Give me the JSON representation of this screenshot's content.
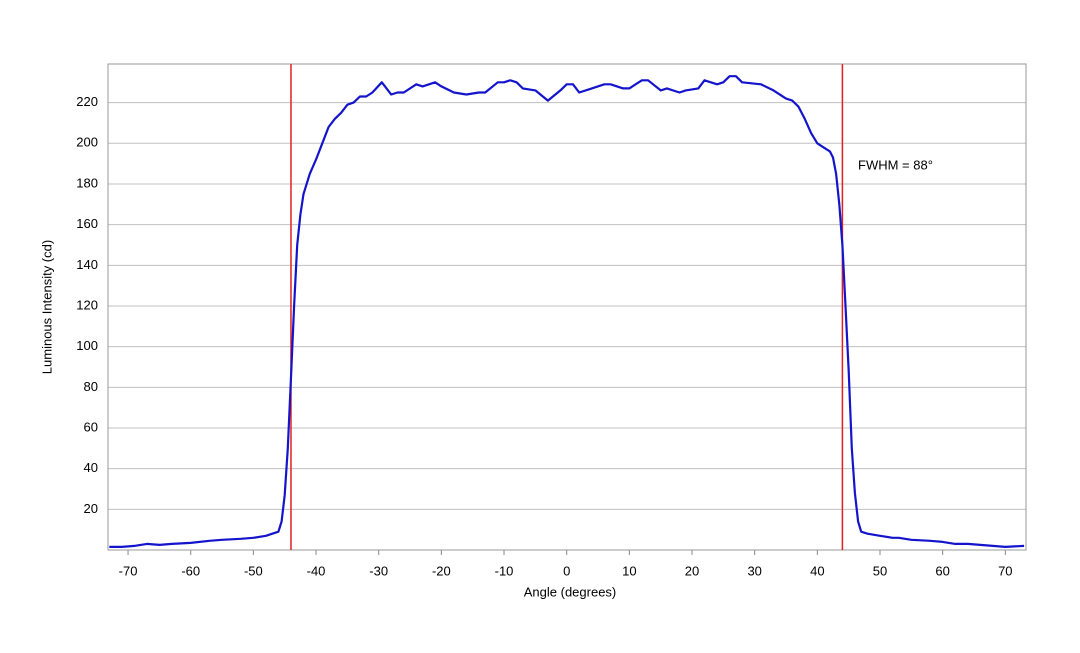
{
  "chart_data": {
    "type": "line",
    "xlabel": "Angle (degrees)",
    "ylabel": "Luminous Intensity (cd)",
    "x": [
      -73,
      -71,
      -69,
      -67,
      -65,
      -63,
      -60,
      -57,
      -55,
      -52,
      -50,
      -48,
      -46,
      -45.5,
      -45,
      -44.5,
      -44,
      -43.5,
      -43,
      -42.5,
      -42,
      -41,
      -40,
      -39,
      -38,
      -37,
      -36,
      -35,
      -34,
      -33,
      -32,
      -31,
      -29.5,
      -29,
      -28,
      -27,
      -26,
      -24,
      -23,
      -21,
      -20,
      -18,
      -16,
      -14,
      -13,
      -11,
      -10,
      -9,
      -8,
      -7,
      -5,
      -3,
      -1,
      0,
      1,
      2,
      4,
      6,
      7,
      9,
      10,
      12,
      13,
      15,
      16,
      18,
      19,
      21,
      22,
      24,
      25,
      26,
      27,
      28,
      31,
      33,
      35,
      36,
      37,
      38,
      39,
      40,
      41,
      42,
      42.5,
      43,
      43.5,
      44,
      44.5,
      45,
      45.5,
      46,
      46.5,
      47,
      48,
      50,
      52,
      53,
      55,
      58,
      60,
      62,
      64,
      66,
      68,
      70,
      73
    ],
    "values": [
      1.5,
      1.5,
      2,
      3,
      2.5,
      3,
      3.5,
      4.5,
      5,
      5.5,
      6,
      7,
      9,
      14,
      27,
      50,
      85,
      120,
      150,
      165,
      175,
      185,
      192,
      200,
      208,
      212,
      215,
      219,
      220,
      223,
      223,
      225,
      230,
      228,
      224,
      225,
      225,
      229,
      228,
      230,
      228,
      225,
      224,
      225,
      225,
      230,
      230,
      231,
      230,
      227,
      226,
      221,
      226,
      229,
      229,
      225,
      227,
      229,
      229,
      227,
      227,
      231,
      231,
      226,
      227,
      225,
      226,
      227,
      231,
      229,
      230,
      233,
      233,
      230,
      229,
      226,
      222,
      221,
      218,
      212,
      205,
      200,
      198,
      196,
      193,
      185,
      170,
      150,
      120,
      88,
      50,
      28,
      14,
      9,
      8,
      7,
      6,
      6,
      5,
      4.5,
      4,
      3,
      3,
      2.5,
      2,
      1.5,
      2
    ],
    "color": "#1414cc",
    "vlines": [
      -44,
      44
    ],
    "vline_color": "#e02020",
    "annotation": "FWHM = 88°",
    "xlim": [
      -73.2,
      73.3
    ],
    "ylim": [
      0,
      239
    ],
    "xticks": [
      -70,
      -60,
      -50,
      -40,
      -30,
      -20,
      -10,
      0,
      10,
      20,
      30,
      40,
      50,
      60,
      70
    ],
    "yticks": [
      20,
      40,
      60,
      80,
      100,
      120,
      140,
      160,
      180,
      200,
      220
    ],
    "grid": true
  }
}
